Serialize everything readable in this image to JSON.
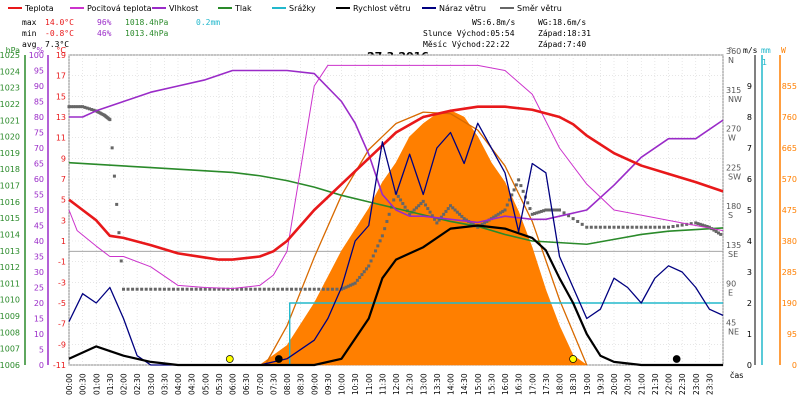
{
  "legend": [
    {
      "label": "Teplota",
      "color": "#e8181a"
    },
    {
      "label": "Pocitová teplota",
      "color": "#cc33cc"
    },
    {
      "label": "Vlhkost",
      "color": "#9a2bc8"
    },
    {
      "label": "Tlak",
      "color": "#2a8a2a"
    },
    {
      "label": "Srážky",
      "color": "#22b8cc"
    },
    {
      "label": "Rychlost větru",
      "color": "#000000"
    },
    {
      "label": "Náraz větru",
      "color": "#000080"
    },
    {
      "label": "Směr větru",
      "color": "#666666"
    }
  ],
  "stats": {
    "max_label": "max",
    "max_temp": "14.0°C",
    "max_hum": "96%",
    "max_press": "1018.4hPa",
    "max_rain": "0.2mm",
    "min_label": "min",
    "min_temp": "-0.8°C",
    "min_hum": "46%",
    "min_press": "1013.4hPa",
    "avg_label": "avg",
    "avg_temp": "7.3°C"
  },
  "info": {
    "ws": "WS:6.8m/s",
    "wg": "WG:18.6m/s",
    "sun_rise": "Slunce Východ:05:54",
    "sun_set": "Západ:18:31",
    "moon_rise": "Měsíc Východ:22:22",
    "moon_set": "Západ:7:40"
  },
  "chart_data": {
    "type": "line",
    "title": "27.3.2016",
    "x_unit_label": "čas",
    "x_ticks": [
      "00:00",
      "00:30",
      "01:00",
      "01:30",
      "02:00",
      "02:30",
      "03:00",
      "03:30",
      "04:00",
      "04:30",
      "05:00",
      "05:30",
      "06:00",
      "06:30",
      "07:00",
      "07:30",
      "08:00",
      "08:30",
      "09:00",
      "09:30",
      "10:00",
      "10:30",
      "11:00",
      "11:30",
      "12:00",
      "12:30",
      "13:00",
      "13:30",
      "14:00",
      "14:30",
      "15:00",
      "15:30",
      "16:00",
      "16:30",
      "17:00",
      "17:30",
      "18:00",
      "18:30",
      "19:00",
      "19:30",
      "20:00",
      "20:30",
      "21:00",
      "21:30",
      "22:00",
      "22:30",
      "23:00",
      "23:30"
    ],
    "axes": {
      "pressure": {
        "unit": "hPa",
        "min": 1006,
        "max": 1025,
        "ticks": [
          "1025",
          "1024",
          "1023",
          "1022",
          "1021",
          "1020",
          "1019",
          "1018",
          "1017",
          "1016",
          "1015",
          "1014",
          "1013",
          "1012",
          "1011",
          "1010",
          "1009",
          "1008",
          "1007",
          "1006"
        ]
      },
      "humidity": {
        "unit": "%",
        "min": 0,
        "max": 100,
        "ticks": [
          "100",
          "95",
          "90",
          "85",
          "80",
          "75",
          "70",
          "65",
          "60",
          "55",
          "50",
          "45",
          "40",
          "35",
          "30",
          "25",
          "20",
          "15",
          "10",
          "5",
          "0"
        ]
      },
      "temperature": {
        "unit": "°C",
        "min": -11,
        "max": 19,
        "ticks": [
          "19",
          "17",
          "15",
          "13",
          "11",
          "9",
          "7",
          "5",
          "3",
          "1",
          "-1",
          "-3",
          "-5",
          "-7",
          "-9",
          "-11"
        ]
      },
      "wind_dir": {
        "unit": "°",
        "min": 0,
        "max": 360,
        "ticks": [
          {
            "deg": "360",
            "dir": "N"
          },
          {
            "deg": "315",
            "dir": "NW"
          },
          {
            "deg": "270",
            "dir": "W"
          },
          {
            "deg": "225",
            "dir": "SW"
          },
          {
            "deg": "180",
            "dir": "S"
          },
          {
            "deg": "135",
            "dir": "SE"
          },
          {
            "deg": "90",
            "dir": "E"
          },
          {
            "deg": "45",
            "dir": "NE"
          }
        ]
      },
      "wind_speed": {
        "unit": "m/s",
        "min": 0,
        "max": 10,
        "ticks": [
          "9",
          "8",
          "7",
          "6",
          "5",
          "4",
          "3",
          "2",
          "1",
          "0"
        ]
      },
      "rain": {
        "unit": "mm",
        "min": 0,
        "max": 1,
        "ticks": [
          "1"
        ]
      },
      "solar": {
        "unit": "W",
        "min": 0,
        "max": 950,
        "ticks": [
          "855",
          "760",
          "665",
          "570",
          "475",
          "380",
          "285",
          "190",
          "95",
          "0"
        ]
      }
    },
    "series": [
      {
        "name": "Teplota",
        "color": "#e8181a",
        "x": [
          0,
          0.3,
          1,
          1.5,
          2,
          3,
          4,
          5,
          5.5,
          6,
          7,
          7.5,
          8,
          8.5,
          9,
          10,
          11,
          12,
          13,
          14,
          15,
          16,
          17,
          18,
          18.5,
          19,
          20,
          21,
          22,
          23,
          24
        ],
        "y": [
          5,
          4.4,
          3,
          1.5,
          1.3,
          0.6,
          -0.2,
          -0.6,
          -0.8,
          -0.8,
          -0.5,
          0,
          1,
          2.5,
          4,
          6.5,
          9,
          11.5,
          13,
          13.6,
          14,
          14,
          13.7,
          13,
          12.3,
          11.2,
          9.5,
          8.3,
          7.5,
          6.7,
          5.8
        ]
      },
      {
        "name": "Pocitová teplota",
        "color": "#cc33cc",
        "x": [
          0,
          0.3,
          1,
          1.5,
          2,
          3,
          4,
          5,
          6,
          7,
          7.5,
          8,
          8.5,
          9,
          9.5,
          10,
          11,
          12,
          13,
          14,
          15,
          16,
          17,
          18,
          19,
          20,
          21,
          22,
          23,
          24
        ],
        "y": [
          4,
          2,
          0.5,
          -0.5,
          -0.5,
          -1.5,
          -3.3,
          -3.5,
          -3.6,
          -3.3,
          -2.3,
          0,
          8,
          16,
          18,
          18,
          18,
          18,
          18,
          18,
          18,
          17.5,
          15.2,
          10,
          6.5,
          4,
          3.5,
          3,
          2.5,
          2
        ]
      },
      {
        "name": "Vlhkost",
        "color": "#9a2bc8",
        "x": [
          0,
          0.5,
          1,
          2,
          3,
          4,
          5,
          6,
          7,
          7.5,
          8,
          9,
          10,
          10.5,
          11,
          11.5,
          12,
          12.5,
          13,
          14,
          15,
          16,
          17,
          17.5,
          18,
          19,
          20,
          21,
          22,
          23,
          24
        ],
        "y": [
          80,
          80,
          82,
          85,
          88,
          90,
          92,
          95,
          95,
          95,
          95,
          94,
          85,
          78,
          68,
          55,
          50,
          48,
          48,
          47,
          46,
          48,
          47,
          47,
          48,
          50,
          58,
          67,
          73,
          73,
          79
        ]
      },
      {
        "name": "Tlak",
        "color": "#2a8a2a",
        "x": [
          0,
          1,
          2,
          3,
          4,
          5,
          6,
          7,
          8,
          9,
          10,
          11,
          12,
          13,
          14,
          15,
          16,
          17,
          18,
          19,
          20,
          21,
          22,
          23,
          24
        ],
        "y": [
          1018.4,
          1018.3,
          1018.2,
          1018.1,
          1018.0,
          1017.9,
          1017.8,
          1017.6,
          1017.3,
          1016.9,
          1016.4,
          1016.0,
          1015.6,
          1015.2,
          1014.8,
          1014.5,
          1014.0,
          1013.6,
          1013.5,
          1013.4,
          1013.7,
          1014.0,
          1014.2,
          1014.3,
          1014.4
        ]
      },
      {
        "name": "Srážky",
        "color": "#22b8cc",
        "x": [
          8.1,
          8.1,
          24
        ],
        "y": [
          0,
          0.2,
          0.2
        ]
      },
      {
        "name": "Rychlost větru",
        "color": "#000000",
        "x": [
          0,
          1,
          2,
          3,
          4,
          5,
          6,
          7,
          8,
          8.5,
          9,
          10,
          11,
          11.5,
          12,
          13,
          14,
          15,
          16,
          17,
          17.5,
          18,
          18.5,
          19,
          19.5,
          20,
          21,
          22,
          23,
          24
        ],
        "y": [
          0.2,
          0.6,
          0.3,
          0.1,
          0,
          0,
          0,
          0,
          0,
          0,
          0,
          0.2,
          1.5,
          2.8,
          3.4,
          3.8,
          4.4,
          4.5,
          4.4,
          4.1,
          3.7,
          2.8,
          2,
          1,
          0.3,
          0.1,
          0,
          0,
          0,
          0
        ]
      },
      {
        "name": "Náraz větru",
        "color": "#000080",
        "x": [
          0,
          0.5,
          1,
          1.5,
          2,
          2.5,
          3,
          4,
          5,
          6,
          7,
          8,
          9,
          9.5,
          10,
          10.5,
          11,
          11.5,
          12,
          12.5,
          13,
          13.5,
          14,
          14.5,
          15,
          15.5,
          16,
          16.5,
          17,
          17.5,
          18,
          18.5,
          19,
          19.5,
          20,
          20.5,
          21,
          21.5,
          22,
          22.5,
          23,
          23.5,
          24
        ],
        "y": [
          1.4,
          2.3,
          2.0,
          2.5,
          1.5,
          0.3,
          0,
          0,
          0,
          0,
          0,
          0.2,
          0.8,
          1.5,
          2.5,
          4.0,
          4.5,
          7.2,
          5.5,
          6.8,
          5.5,
          7.0,
          7.5,
          6.5,
          7.8,
          7.0,
          6.2,
          4.3,
          6.5,
          6.2,
          3.5,
          2.5,
          1.5,
          1.8,
          2.8,
          2.5,
          2.0,
          2.8,
          3.2,
          3.0,
          2.5,
          1.8,
          1.6
        ]
      },
      {
        "name": "Směr větru",
        "color": "#666666",
        "x": [
          0,
          0.5,
          1,
          1.3,
          1.5,
          2,
          3,
          4,
          5,
          6,
          7,
          8,
          9,
          10,
          10.5,
          11,
          11.5,
          12,
          12.5,
          13,
          13.5,
          14,
          14.5,
          15,
          15.5,
          16,
          16.5,
          17,
          17.5,
          18,
          19,
          20,
          21,
          22,
          23,
          23.5,
          24
        ],
        "y": [
          300,
          300,
          295,
          290,
          285,
          88,
          88,
          88,
          88,
          88,
          88,
          88,
          88,
          88,
          95,
          115,
          150,
          200,
          175,
          190,
          165,
          185,
          170,
          160,
          170,
          180,
          215,
          175,
          180,
          180,
          160,
          160,
          160,
          160,
          165,
          160,
          150
        ]
      },
      {
        "name": "Solární záření",
        "color": "#ff7f00",
        "x": [
          7,
          8,
          9,
          10,
          11,
          11.5,
          12,
          12.5,
          13,
          13.5,
          14,
          14.5,
          15,
          15.5,
          16,
          16.5,
          17,
          17.5,
          18,
          18.5,
          19
        ],
        "y": [
          0,
          60,
          190,
          350,
          480,
          560,
          620,
          700,
          740,
          770,
          780,
          760,
          700,
          620,
          560,
          470,
          360,
          230,
          120,
          30,
          0
        ]
      },
      {
        "name": "Maximum záření",
        "color": "#d86a00",
        "x": [
          7.2,
          8,
          9,
          10,
          11,
          12,
          13,
          14,
          15,
          16,
          17,
          18,
          19
        ],
        "y": [
          0,
          120,
          330,
          520,
          660,
          740,
          775,
          770,
          720,
          610,
          440,
          200,
          0
        ]
      }
    ],
    "markers": [
      {
        "name": "sunrise",
        "x": 5.9,
        "color": "#ffff00"
      },
      {
        "name": "sunset",
        "x": 18.5,
        "color": "#ffff00"
      },
      {
        "name": "moonset",
        "x": 7.7,
        "color": "#000000"
      },
      {
        "name": "moonrise",
        "x": 22.3,
        "color": "#000000"
      }
    ],
    "grid": true
  }
}
